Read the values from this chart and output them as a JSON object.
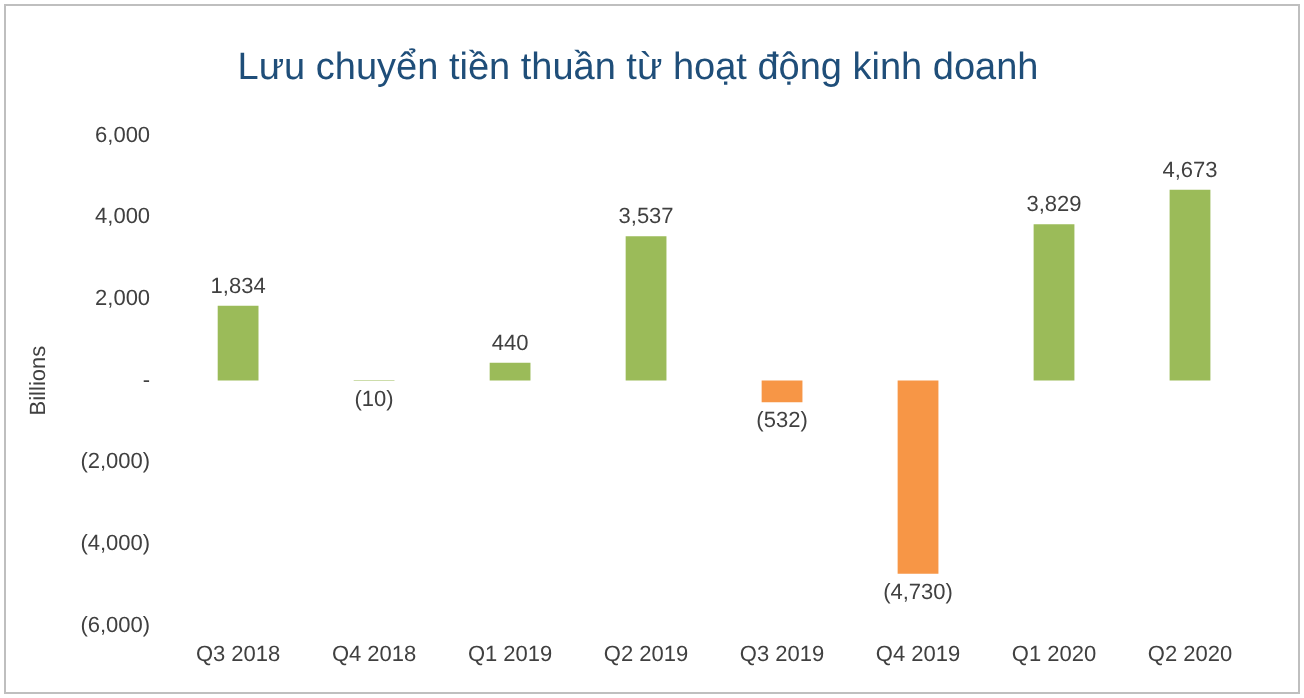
{
  "chart_data": {
    "type": "bar",
    "title": "Lưu chuyển tiền thuần từ hoạt động kinh doanh",
    "ylabel": "Billions",
    "categories": [
      "Q3 2018",
      "Q4 2018",
      "Q1 2019",
      "Q2 2019",
      "Q3 2019",
      "Q4 2019",
      "Q1 2020",
      "Q2 2020"
    ],
    "values": [
      1834,
      -10,
      440,
      3537,
      -532,
      -4730,
      3829,
      4673
    ],
    "colors": [
      "#9bbb59",
      "#9bbb59",
      "#9bbb59",
      "#9bbb59",
      "#f79646",
      "#f79646",
      "#9bbb59",
      "#9bbb59"
    ],
    "value_labels": [
      "1,834",
      "(10)",
      "440",
      "3,537",
      "(532)",
      "(4,730)",
      "3,829",
      "4,673"
    ],
    "ylim": [
      -6000,
      6000
    ],
    "yticks": [
      {
        "value": -6000,
        "label": "(6,000)"
      },
      {
        "value": -4000,
        "label": "(4,000)"
      },
      {
        "value": -2000,
        "label": "(2,000)"
      },
      {
        "value": 0,
        "label": "-"
      },
      {
        "value": 2000,
        "label": "2,000"
      },
      {
        "value": 4000,
        "label": "4,000"
      },
      {
        "value": 6000,
        "label": "6,000"
      }
    ],
    "grid": false,
    "legend": false
  }
}
